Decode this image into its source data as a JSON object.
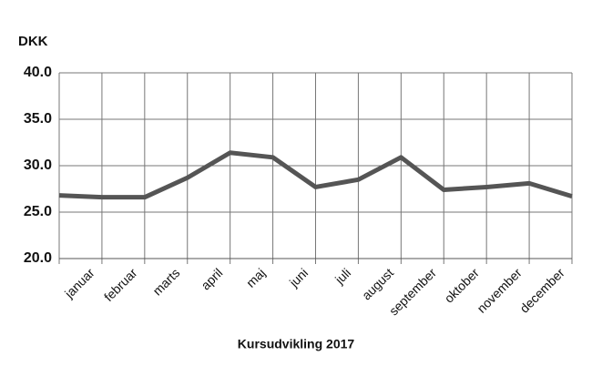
{
  "chart_data": {
    "type": "line",
    "y_label": "DKK",
    "x_label": "Kursudvikling 2017",
    "categories": [
      null,
      "januar",
      "februar",
      "marts",
      "april",
      "maj",
      "juni",
      "juli",
      "august",
      "september",
      "oktober",
      "november",
      "december"
    ],
    "series": [
      {
        "name": null,
        "color": "#555555",
        "values": [
          26.8,
          26.6,
          26.6,
          28.7,
          31.4,
          30.9,
          27.7,
          28.5,
          30.9,
          27.4,
          27.7,
          28.1,
          26.7
        ]
      }
    ],
    "ylim": [
      20,
      40
    ],
    "yticks": [
      {
        "value": 20,
        "label": "20.0"
      },
      {
        "value": 25,
        "label": "25.0"
      },
      {
        "value": 30,
        "label": "30.0"
      },
      {
        "value": 35,
        "label": "35.0"
      },
      {
        "value": 40,
        "label": "40.0"
      }
    ],
    "grid": true
  }
}
